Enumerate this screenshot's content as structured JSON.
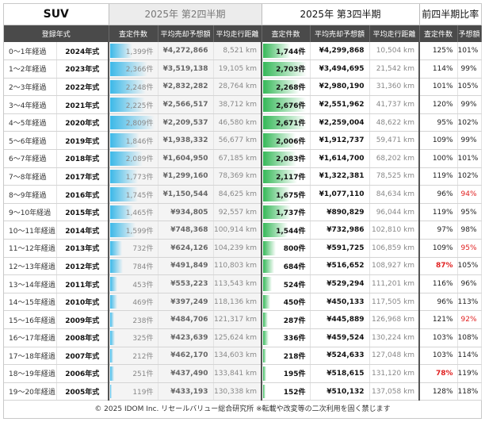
{
  "header": {
    "category": "SUV",
    "q2_title": "2025年 第2四半期",
    "q3_title": "2025年 第3四半期",
    "ratio_title": "前四半期比率"
  },
  "columns": {
    "year": "登録年式",
    "q2_count": "査定件数",
    "q2_price": "平均売却予想額",
    "q2_km": "平均走行距離",
    "q3_count": "査定件数",
    "q3_price": "平均売却予想額",
    "q3_km": "平均走行距離",
    "ratio_count": "査定件数",
    "ratio_price": "予想額"
  },
  "rows": [
    {
      "age": "0～1年経過",
      "year": "2024年式",
      "q2_count": "1,399件",
      "q2_count_value": 1399,
      "q2_price": "¥4,272,866",
      "q2_km": "8,521 km",
      "q3_count": "1,744件",
      "q3_count_value": 1744,
      "q3_price": "¥4,299,868",
      "q3_km": "10,504 km",
      "ratio_count": "125%",
      "ratio_price": "101%",
      "ratio_count_flag": "",
      "ratio_price_flag": ""
    },
    {
      "age": "1～2年経過",
      "year": "2023年式",
      "q2_count": "2,366件",
      "q2_count_value": 2366,
      "q2_price": "¥3,519,138",
      "q2_km": "19,105 km",
      "q3_count": "2,703件",
      "q3_count_value": 2703,
      "q3_price": "¥3,494,695",
      "q3_km": "21,542 km",
      "ratio_count": "114%",
      "ratio_price": "99%",
      "ratio_count_flag": "",
      "ratio_price_flag": ""
    },
    {
      "age": "2～3年経過",
      "year": "2022年式",
      "q2_count": "2,248件",
      "q2_count_value": 2248,
      "q2_price": "¥2,832,282",
      "q2_km": "28,764 km",
      "q3_count": "2,268件",
      "q3_count_value": 2268,
      "q3_price": "¥2,980,190",
      "q3_km": "31,360 km",
      "ratio_count": "101%",
      "ratio_price": "105%",
      "ratio_count_flag": "",
      "ratio_price_flag": ""
    },
    {
      "age": "3～4年経過",
      "year": "2021年式",
      "q2_count": "2,225件",
      "q2_count_value": 2225,
      "q2_price": "¥2,566,517",
      "q2_km": "38,712 km",
      "q3_count": "2,676件",
      "q3_count_value": 2676,
      "q3_price": "¥2,551,962",
      "q3_km": "41,737 km",
      "ratio_count": "120%",
      "ratio_price": "99%",
      "ratio_count_flag": "",
      "ratio_price_flag": ""
    },
    {
      "age": "4～5年経過",
      "year": "2020年式",
      "q2_count": "2,809件",
      "q2_count_value": 2809,
      "q2_price": "¥2,209,537",
      "q2_km": "46,580 km",
      "q3_count": "2,671件",
      "q3_count_value": 2671,
      "q3_price": "¥2,259,004",
      "q3_km": "48,622 km",
      "ratio_count": "95%",
      "ratio_price": "102%",
      "ratio_count_flag": "",
      "ratio_price_flag": ""
    },
    {
      "age": "5～6年経過",
      "year": "2019年式",
      "q2_count": "1,846件",
      "q2_count_value": 1846,
      "q2_price": "¥1,938,332",
      "q2_km": "56,677 km",
      "q3_count": "2,006件",
      "q3_count_value": 2006,
      "q3_price": "¥1,912,737",
      "q3_km": "59,471 km",
      "ratio_count": "109%",
      "ratio_price": "99%",
      "ratio_count_flag": "",
      "ratio_price_flag": ""
    },
    {
      "age": "6～7年経過",
      "year": "2018年式",
      "q2_count": "2,089件",
      "q2_count_value": 2089,
      "q2_price": "¥1,604,950",
      "q2_km": "67,185 km",
      "q3_count": "2,083件",
      "q3_count_value": 2083,
      "q3_price": "¥1,614,700",
      "q3_km": "68,202 km",
      "ratio_count": "100%",
      "ratio_price": "101%",
      "ratio_count_flag": "",
      "ratio_price_flag": ""
    },
    {
      "age": "7～8年経過",
      "year": "2017年式",
      "q2_count": "1,773件",
      "q2_count_value": 1773,
      "q2_price": "¥1,299,160",
      "q2_km": "78,369 km",
      "q3_count": "2,117件",
      "q3_count_value": 2117,
      "q3_price": "¥1,322,381",
      "q3_km": "78,525 km",
      "ratio_count": "119%",
      "ratio_price": "102%",
      "ratio_count_flag": "",
      "ratio_price_flag": ""
    },
    {
      "age": "8～9年経過",
      "year": "2016年式",
      "q2_count": "1,745件",
      "q2_count_value": 1745,
      "q2_price": "¥1,150,544",
      "q2_km": "84,625 km",
      "q3_count": "1,675件",
      "q3_count_value": 1675,
      "q3_price": "¥1,077,110",
      "q3_km": "84,634 km",
      "ratio_count": "96%",
      "ratio_price": "94%",
      "ratio_count_flag": "",
      "ratio_price_flag": "red"
    },
    {
      "age": "9～10年経過",
      "year": "2015年式",
      "q2_count": "1,465件",
      "q2_count_value": 1465,
      "q2_price": "¥934,805",
      "q2_km": "92,557 km",
      "q3_count": "1,737件",
      "q3_count_value": 1737,
      "q3_price": "¥890,829",
      "q3_km": "96,044 km",
      "ratio_count": "119%",
      "ratio_price": "95%",
      "ratio_count_flag": "",
      "ratio_price_flag": ""
    },
    {
      "age": "10～11年経過",
      "year": "2014年式",
      "q2_count": "1,599件",
      "q2_count_value": 1599,
      "q2_price": "¥748,368",
      "q2_km": "100,914 km",
      "q3_count": "1,544件",
      "q3_count_value": 1544,
      "q3_price": "¥732,986",
      "q3_km": "102,810 km",
      "ratio_count": "97%",
      "ratio_price": "98%",
      "ratio_count_flag": "",
      "ratio_price_flag": ""
    },
    {
      "age": "11～12年経過",
      "year": "2013年式",
      "q2_count": "732件",
      "q2_count_value": 732,
      "q2_price": "¥624,126",
      "q2_km": "104,239 km",
      "q3_count": "800件",
      "q3_count_value": 800,
      "q3_price": "¥591,725",
      "q3_km": "106,859 km",
      "ratio_count": "109%",
      "ratio_price": "95%",
      "ratio_count_flag": "",
      "ratio_price_flag": "red"
    },
    {
      "age": "12～13年経過",
      "year": "2012年式",
      "q2_count": "784件",
      "q2_count_value": 784,
      "q2_price": "¥491,849",
      "q2_km": "110,803 km",
      "q3_count": "684件",
      "q3_count_value": 684,
      "q3_price": "¥516,652",
      "q3_km": "108,927 km",
      "ratio_count": "87%",
      "ratio_price": "105%",
      "ratio_count_flag": "boldred",
      "ratio_price_flag": ""
    },
    {
      "age": "13～14年経過",
      "year": "2011年式",
      "q2_count": "453件",
      "q2_count_value": 453,
      "q2_price": "¥553,223",
      "q2_km": "113,543 km",
      "q3_count": "524件",
      "q3_count_value": 524,
      "q3_price": "¥529,294",
      "q3_km": "111,201 km",
      "ratio_count": "116%",
      "ratio_price": "96%",
      "ratio_count_flag": "",
      "ratio_price_flag": ""
    },
    {
      "age": "14～15年経過",
      "year": "2010年式",
      "q2_count": "469件",
      "q2_count_value": 469,
      "q2_price": "¥397,249",
      "q2_km": "118,136 km",
      "q3_count": "450件",
      "q3_count_value": 450,
      "q3_price": "¥450,133",
      "q3_km": "117,505 km",
      "ratio_count": "96%",
      "ratio_price": "113%",
      "ratio_count_flag": "",
      "ratio_price_flag": ""
    },
    {
      "age": "15～16年経過",
      "year": "2009年式",
      "q2_count": "238件",
      "q2_count_value": 238,
      "q2_price": "¥484,706",
      "q2_km": "121,317 km",
      "q3_count": "287件",
      "q3_count_value": 287,
      "q3_price": "¥445,889",
      "q3_km": "126,968 km",
      "ratio_count": "121%",
      "ratio_price": "92%",
      "ratio_count_flag": "",
      "ratio_price_flag": "red"
    },
    {
      "age": "16～17年経過",
      "year": "2008年式",
      "q2_count": "325件",
      "q2_count_value": 325,
      "q2_price": "¥423,639",
      "q2_km": "125,624 km",
      "q3_count": "336件",
      "q3_count_value": 336,
      "q3_price": "¥459,524",
      "q3_km": "130,224 km",
      "ratio_count": "103%",
      "ratio_price": "108%",
      "ratio_count_flag": "",
      "ratio_price_flag": ""
    },
    {
      "age": "17～18年経過",
      "year": "2007年式",
      "q2_count": "212件",
      "q2_count_value": 212,
      "q2_price": "¥462,170",
      "q2_km": "134,603 km",
      "q3_count": "218件",
      "q3_count_value": 218,
      "q3_price": "¥524,633",
      "q3_km": "127,048 km",
      "ratio_count": "103%",
      "ratio_price": "114%",
      "ratio_count_flag": "",
      "ratio_price_flag": ""
    },
    {
      "age": "18～19年経過",
      "year": "2006年式",
      "q2_count": "251件",
      "q2_count_value": 251,
      "q2_price": "¥437,490",
      "q2_km": "133,841 km",
      "q3_count": "195件",
      "q3_count_value": 195,
      "q3_price": "¥518,615",
      "q3_km": "131,120 km",
      "ratio_count": "78%",
      "ratio_price": "119%",
      "ratio_count_flag": "boldred",
      "ratio_price_flag": ""
    },
    {
      "age": "19～20年経過",
      "year": "2005年式",
      "q2_count": "119件",
      "q2_count_value": 119,
      "q2_price": "¥433,193",
      "q2_km": "130,338 km",
      "q3_count": "152件",
      "q3_count_value": 152,
      "q3_price": "¥510,132",
      "q3_km": "137,058 km",
      "ratio_count": "128%",
      "ratio_price": "118%",
      "ratio_count_flag": "",
      "ratio_price_flag": ""
    }
  ],
  "colors": {
    "q2_bar": "#3bb8e8",
    "q3_bar": "#35b858",
    "header_bg": "#4a4a4a",
    "alert_red": "#e02020"
  },
  "footer": "© 2025 IDOM Inc. リセールバリュー総合研究所 ※転載や改変等の二次利用を固く禁じます"
}
